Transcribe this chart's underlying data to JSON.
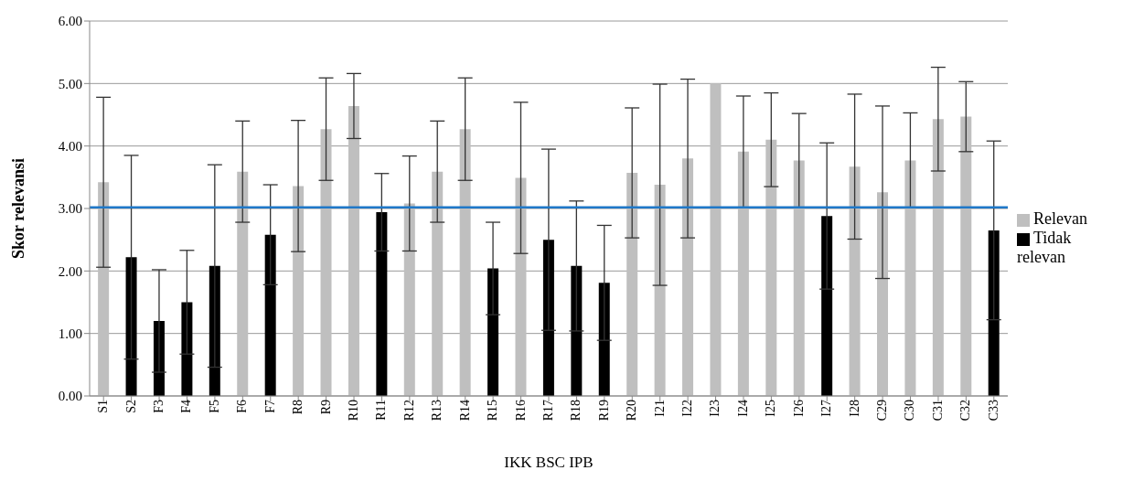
{
  "chart_data": {
    "type": "bar",
    "xlabel": "IKK BSC IPB",
    "ylabel": "Skor  relevansi",
    "categories": [
      "S1",
      "S2",
      "F3",
      "F4",
      "F5",
      "F6",
      "F7",
      "R8",
      "R9",
      "R10",
      "R11",
      "R12",
      "R13",
      "R14",
      "R15",
      "R16",
      "R17",
      "R18",
      "R19",
      "R20",
      "I21",
      "I22",
      "I23",
      "I24",
      "I25",
      "I26",
      "I27",
      "I28",
      "C29",
      "C30",
      "C31",
      "C32",
      "C33"
    ],
    "series": [
      {
        "name": "Relevan",
        "color": "#bfbfbf",
        "values": [
          3.42,
          null,
          null,
          null,
          null,
          3.59,
          null,
          3.36,
          4.27,
          4.64,
          null,
          3.08,
          3.59,
          4.27,
          null,
          3.49,
          null,
          null,
          null,
          3.57,
          3.38,
          3.8,
          5.0,
          3.91,
          4.1,
          3.77,
          null,
          3.67,
          3.26,
          3.77,
          4.43,
          4.47,
          null
        ],
        "errors": [
          1.36,
          null,
          null,
          null,
          null,
          0.81,
          null,
          1.05,
          0.82,
          0.52,
          null,
          0.76,
          0.81,
          0.82,
          null,
          1.21,
          null,
          null,
          null,
          1.04,
          1.61,
          1.27,
          null,
          0.89,
          0.75,
          0.75,
          null,
          1.16,
          1.38,
          0.76,
          0.83,
          0.56,
          null
        ]
      },
      {
        "name": "Tidak relevan",
        "color": "#000000",
        "values": [
          null,
          2.22,
          1.2,
          1.5,
          2.08,
          null,
          2.58,
          null,
          null,
          null,
          2.94,
          null,
          null,
          null,
          2.04,
          null,
          2.5,
          2.08,
          1.81,
          null,
          null,
          null,
          null,
          null,
          null,
          null,
          2.88,
          null,
          null,
          null,
          null,
          null,
          2.65
        ],
        "errors": [
          null,
          1.63,
          0.82,
          0.83,
          1.62,
          null,
          0.8,
          null,
          null,
          null,
          0.62,
          null,
          null,
          null,
          0.74,
          null,
          1.45,
          1.04,
          0.92,
          null,
          null,
          null,
          null,
          null,
          null,
          null,
          1.17,
          null,
          null,
          null,
          null,
          null,
          1.43
        ]
      }
    ],
    "ylim": [
      0,
      6
    ],
    "yticks": [
      {
        "value": 0,
        "label": "0.00"
      },
      {
        "value": 1,
        "label": "1.00"
      },
      {
        "value": 2,
        "label": "2.00"
      },
      {
        "value": 3,
        "label": "3.00"
      },
      {
        "value": 4,
        "label": "4.00"
      },
      {
        "value": 5,
        "label": "5.00"
      },
      {
        "value": 6,
        "label": "6.00"
      }
    ],
    "ref_lines": [
      {
        "axis": "y",
        "value": 3.02,
        "color": "#1f78c8"
      }
    ],
    "grid": "y",
    "legend": "right"
  }
}
